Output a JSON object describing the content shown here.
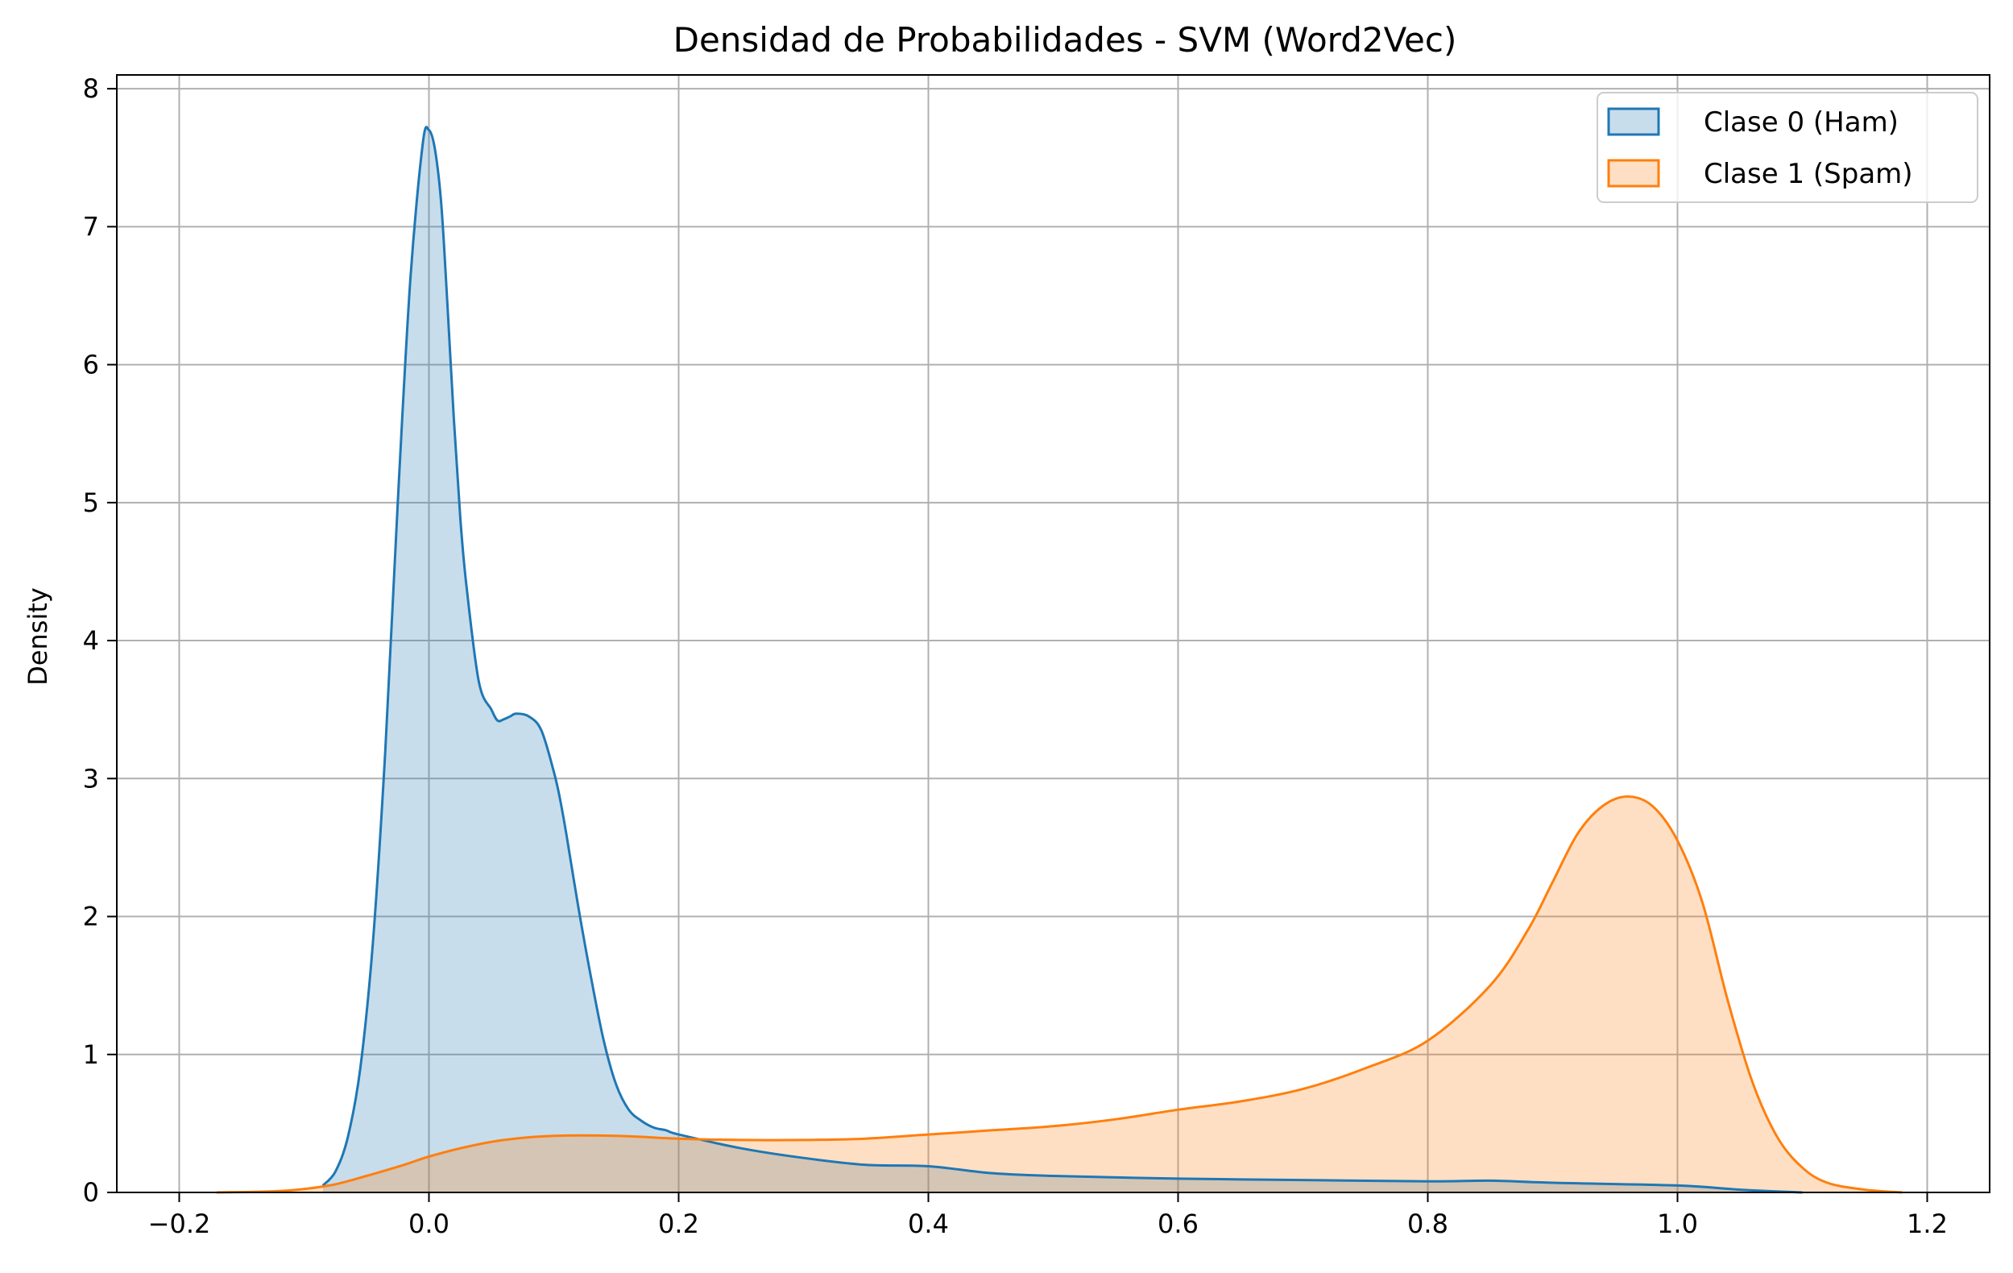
{
  "chart_data": {
    "type": "area",
    "title": "Densidad de Probabilidades - SVM (Word2Vec)",
    "xlabel": "",
    "ylabel": "Density",
    "xlim": [
      -0.25,
      1.25
    ],
    "ylim": [
      0,
      8.1
    ],
    "xticks": [
      -0.2,
      0.0,
      0.2,
      0.4,
      0.6,
      0.8,
      1.0,
      1.2
    ],
    "xtick_labels": [
      "−0.2",
      "0.0",
      "0.2",
      "0.4",
      "0.6",
      "0.8",
      "1.0",
      "1.2"
    ],
    "yticks": [
      0,
      1,
      2,
      3,
      4,
      5,
      6,
      7,
      8
    ],
    "ytick_labels": [
      "0",
      "1",
      "2",
      "3",
      "4",
      "5",
      "6",
      "7",
      "8"
    ],
    "grid": true,
    "legend_position": "top-right",
    "series": [
      {
        "name": "Clase 0 (Ham)",
        "line_color": "#1f77b4",
        "fill_color": "#1f77b4",
        "x": [
          -0.085,
          -0.075,
          -0.065,
          -0.055,
          -0.045,
          -0.035,
          -0.025,
          -0.015,
          -0.005,
          0.0,
          0.005,
          0.01,
          0.015,
          0.02,
          0.025,
          0.03,
          0.04,
          0.05,
          0.055,
          0.06,
          0.065,
          0.07,
          0.08,
          0.09,
          0.1,
          0.105,
          0.11,
          0.12,
          0.13,
          0.14,
          0.15,
          0.16,
          0.17,
          0.18,
          0.19,
          0.2,
          0.25,
          0.3,
          0.35,
          0.4,
          0.45,
          0.5,
          0.6,
          0.7,
          0.8,
          0.85,
          0.9,
          1.0,
          1.05,
          1.1
        ],
        "y": [
          0.05,
          0.15,
          0.4,
          0.9,
          1.8,
          3.2,
          5.0,
          6.6,
          7.6,
          7.7,
          7.55,
          7.15,
          6.4,
          5.6,
          4.9,
          4.4,
          3.7,
          3.5,
          3.42,
          3.43,
          3.45,
          3.47,
          3.45,
          3.35,
          3.05,
          2.85,
          2.6,
          2.05,
          1.55,
          1.1,
          0.78,
          0.6,
          0.52,
          0.47,
          0.45,
          0.42,
          0.32,
          0.25,
          0.2,
          0.19,
          0.14,
          0.12,
          0.1,
          0.09,
          0.08,
          0.085,
          0.07,
          0.05,
          0.02,
          0.0
        ]
      },
      {
        "name": "Clase 1 (Spam)",
        "line_color": "#ff7f0e",
        "fill_color": "#ff7f0e",
        "x": [
          -0.17,
          -0.12,
          -0.08,
          -0.05,
          -0.02,
          0.0,
          0.03,
          0.06,
          0.1,
          0.15,
          0.2,
          0.25,
          0.3,
          0.35,
          0.4,
          0.45,
          0.5,
          0.55,
          0.6,
          0.65,
          0.7,
          0.75,
          0.8,
          0.85,
          0.88,
          0.9,
          0.92,
          0.94,
          0.96,
          0.98,
          1.0,
          1.02,
          1.04,
          1.06,
          1.08,
          1.1,
          1.12,
          1.15,
          1.18
        ],
        "y": [
          0.0,
          0.01,
          0.05,
          0.12,
          0.2,
          0.26,
          0.33,
          0.38,
          0.41,
          0.41,
          0.39,
          0.38,
          0.38,
          0.39,
          0.42,
          0.45,
          0.48,
          0.53,
          0.6,
          0.66,
          0.75,
          0.9,
          1.1,
          1.5,
          1.9,
          2.25,
          2.6,
          2.8,
          2.87,
          2.8,
          2.55,
          2.1,
          1.4,
          0.8,
          0.4,
          0.18,
          0.07,
          0.02,
          0.0
        ]
      }
    ]
  }
}
